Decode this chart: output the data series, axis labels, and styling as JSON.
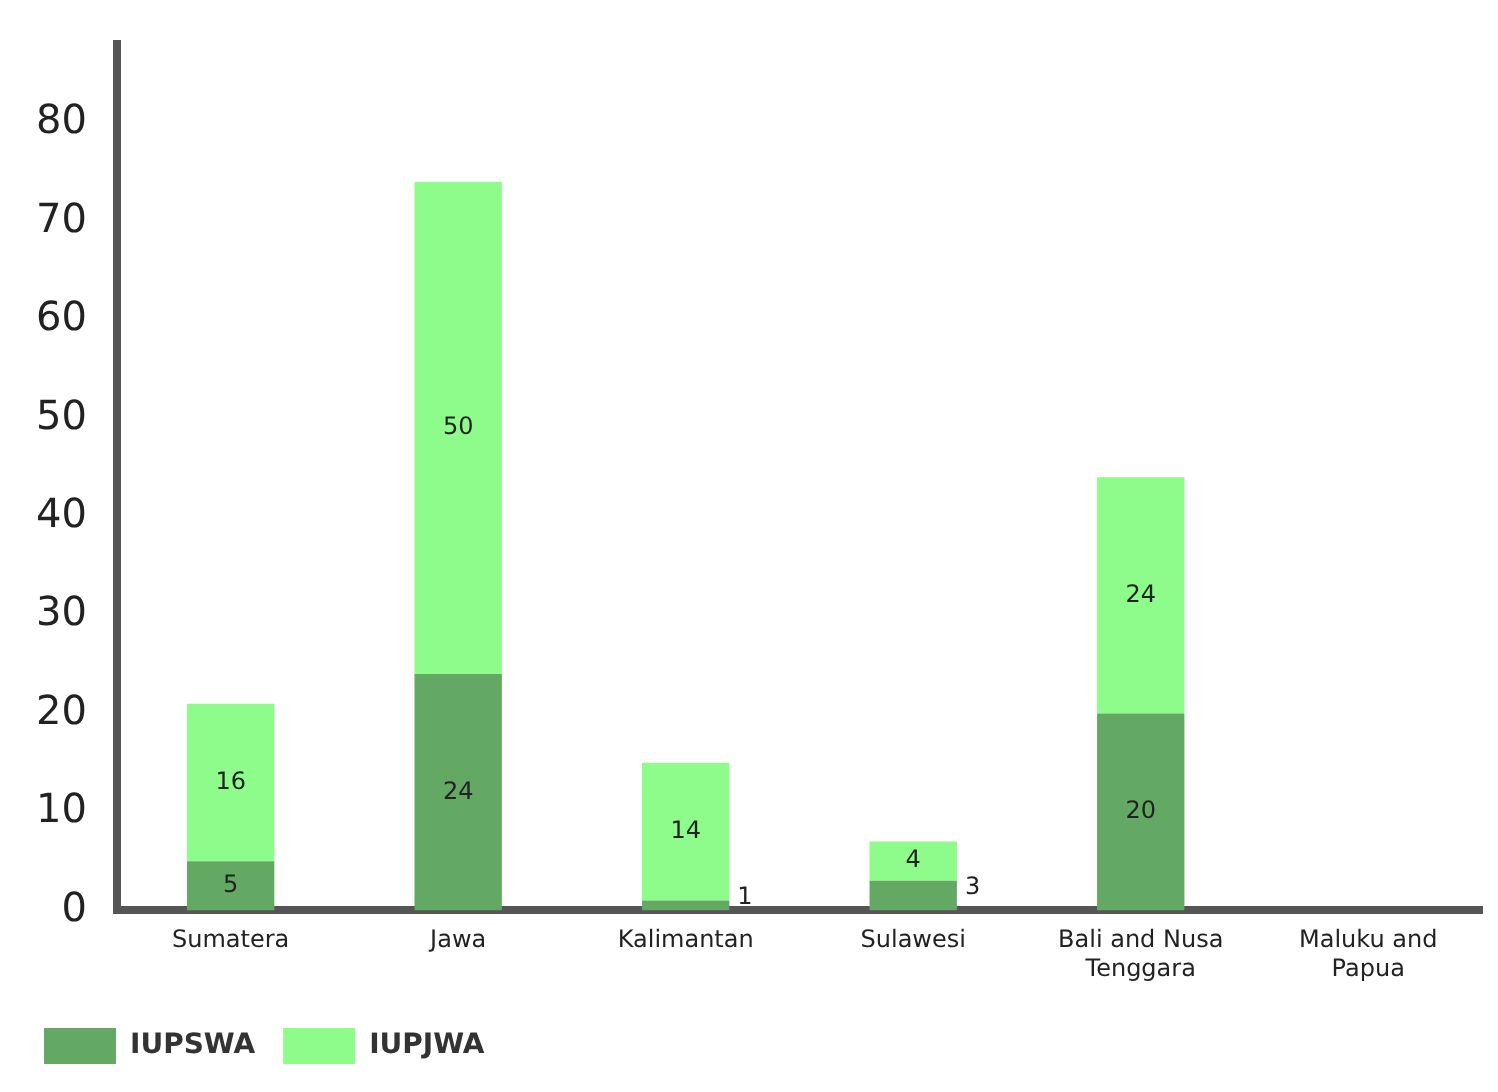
{
  "chart_data": {
    "type": "bar",
    "stacked": true,
    "categories": [
      "Sumatera",
      "Jawa",
      "Kalimantan",
      "Sulawesi",
      "Bali and Nusa Tenggara",
      "Maluku and Papua"
    ],
    "series": [
      {
        "name": "IUPSWA",
        "color": "#63a863",
        "values": [
          5,
          24,
          1,
          3,
          20,
          null
        ]
      },
      {
        "name": "IUPJWA",
        "color": "#8efc8a",
        "values": [
          16,
          50,
          14,
          4,
          24,
          null
        ]
      }
    ],
    "ylim": [
      0,
      88
    ],
    "yticks": [
      0,
      10,
      20,
      30,
      40,
      50,
      60,
      70,
      80
    ],
    "grid": false,
    "legend": "bottom left",
    "data_labels": true
  }
}
